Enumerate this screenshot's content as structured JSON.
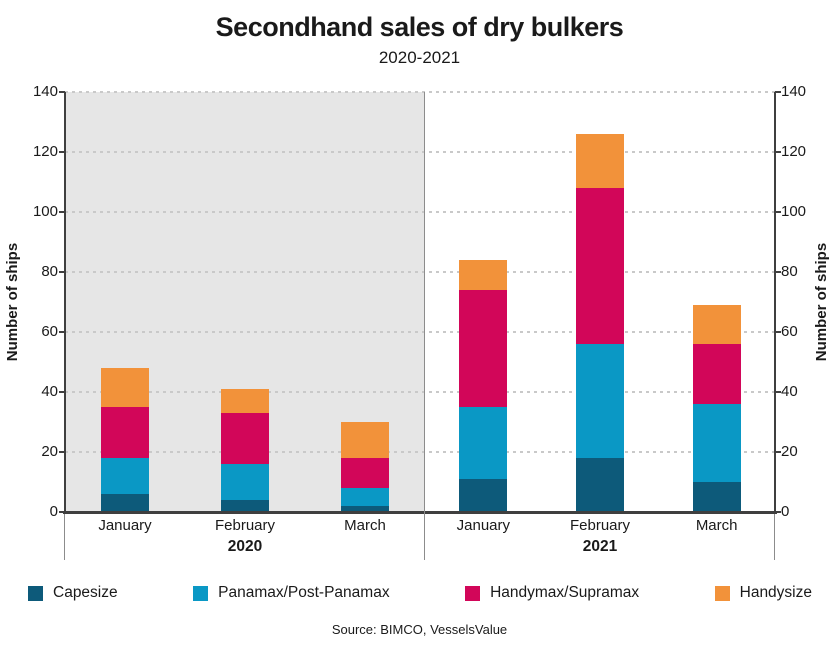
{
  "page": {
    "title": "Secondhand sales of dry bulkers",
    "subtitle": "2020-2021",
    "source": "Source: BIMCO, VesselsValue"
  },
  "axis": {
    "y_label_left": "Number of ships",
    "y_label_right": "Number of ships",
    "y_min": 0,
    "y_max": 140,
    "y_step": 20,
    "y_tick_labels": [
      "0",
      "20",
      "40",
      "60",
      "80",
      "100",
      "120",
      "140"
    ]
  },
  "colors": {
    "shade_2020": "#E6E6E6",
    "gridline": "#C9C9C9",
    "axis_line": "#3F3F3F",
    "divider": "#8C8C8C",
    "capesize": "#0D5A7A",
    "panamax": "#0A98C5",
    "handymax": "#D20659",
    "handysize": "#F2923A"
  },
  "chart_data": {
    "type": "bar",
    "stacked": true,
    "title": "Secondhand sales of dry bulkers",
    "subtitle": "2020-2021",
    "xlabel": "",
    "ylabel": "Number of ships",
    "ylim": [
      0,
      140
    ],
    "ytick_step": 20,
    "grid": "horizontal dotted gridlines on",
    "legend_position": "bottom",
    "background_shading": "2020 group has light gray plot background; 2021 group white",
    "groups": [
      {
        "label": "2020",
        "categories": [
          "January",
          "February",
          "March"
        ],
        "shaded": true
      },
      {
        "label": "2021",
        "categories": [
          "January",
          "February",
          "March"
        ],
        "shaded": false
      }
    ],
    "categories": [
      "January",
      "February",
      "March",
      "January",
      "February",
      "March"
    ],
    "series": [
      {
        "name": "Capesize",
        "color": "#0D5A7A",
        "values": [
          6,
          4,
          2,
          11,
          18,
          10
        ]
      },
      {
        "name": "Panamax/Post-Panamax",
        "color": "#0A98C5",
        "values": [
          12,
          12,
          6,
          24,
          38,
          26
        ]
      },
      {
        "name": "Handymax/Supramax",
        "color": "#D20659",
        "values": [
          17,
          17,
          10,
          39,
          52,
          20
        ]
      },
      {
        "name": "Handysize",
        "color": "#F2923A",
        "values": [
          13,
          8,
          12,
          10,
          18,
          13
        ]
      }
    ],
    "totals": [
      48,
      41,
      30,
      84,
      126,
      69
    ],
    "source": "Source: BIMCO, VesselsValue"
  }
}
